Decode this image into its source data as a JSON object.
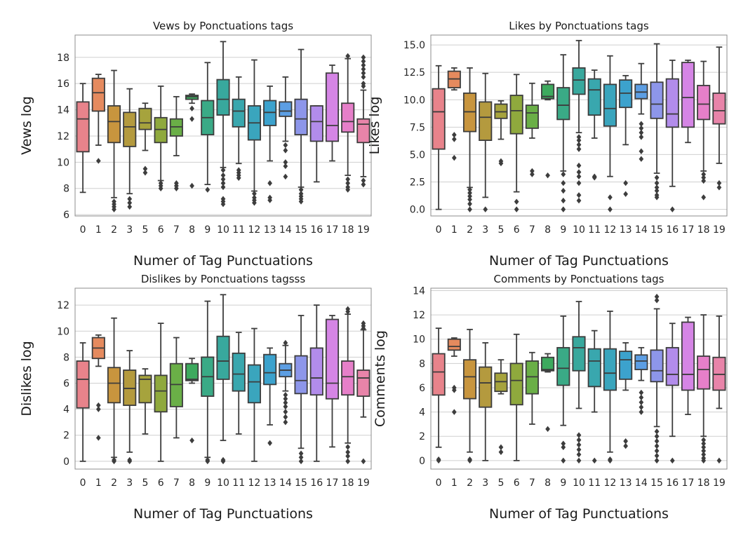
{
  "palette": [
    "#e8838b",
    "#e58a5e",
    "#c8953e",
    "#b49a3e",
    "#a6a33d",
    "#8fa93d",
    "#6aaf47",
    "#3daa5e",
    "#3aaa86",
    "#38a89d",
    "#39a7ae",
    "#3aa5bd",
    "#3ca2cd",
    "#5c9ee3",
    "#8d96ea",
    "#b28ceb",
    "#d585e5",
    "#e67fc9",
    "#e884a9",
    "#e6879a"
  ],
  "box_line": "#3d3d3d",
  "chart_data": [
    {
      "type": "box",
      "title": "Vews by Ponctuations tags",
      "xlabel": "Numer of Tag Punctuations",
      "ylabel": "Vews log",
      "categories": [
        "0",
        "1",
        "2",
        "3",
        "5",
        "6",
        "7",
        "8",
        "9",
        "10",
        "11",
        "12",
        "13",
        "14",
        "15",
        "16",
        "17",
        "18",
        "19"
      ],
      "ylim": [
        5.9,
        19.7
      ],
      "yticks": [
        6,
        8,
        10,
        12,
        14,
        16,
        18
      ],
      "grid": "horizontal",
      "boxes": [
        {
          "q1": 10.8,
          "med": 13.3,
          "q3": 14.6,
          "lo": 7.7,
          "hi": 16.0,
          "out": []
        },
        {
          "q1": 13.9,
          "med": 15.3,
          "q3": 16.4,
          "lo": 11.3,
          "hi": 16.7,
          "out": [
            10.1
          ]
        },
        {
          "q1": 11.5,
          "med": 13.1,
          "q3": 14.3,
          "lo": 7.3,
          "hi": 17.0,
          "out": [
            7.0,
            6.8,
            6.6,
            6.4
          ]
        },
        {
          "q1": 11.2,
          "med": 12.7,
          "q3": 13.8,
          "lo": 7.6,
          "hi": 15.6,
          "out": [
            7.2,
            6.9,
            6.6
          ]
        },
        {
          "q1": 12.5,
          "med": 13.0,
          "q3": 14.1,
          "lo": 10.9,
          "hi": 14.5,
          "out": [
            9.5,
            9.2
          ]
        },
        {
          "q1": 11.5,
          "med": 12.5,
          "q3": 13.4,
          "lo": 8.6,
          "hi": 15.8,
          "out": [
            8.4,
            8.2,
            8.0
          ]
        },
        {
          "q1": 12.0,
          "med": 12.7,
          "q3": 13.3,
          "lo": 10.5,
          "hi": 15.0,
          "out": [
            8.4,
            8.2,
            8.0
          ]
        },
        {
          "q1": 14.8,
          "med": 15.0,
          "q3": 15.1,
          "lo": 14.5,
          "hi": 15.2,
          "out": [
            14.1,
            13.3,
            8.2
          ]
        },
        {
          "q1": 12.1,
          "med": 13.4,
          "q3": 14.7,
          "lo": 8.3,
          "hi": 17.6,
          "out": [
            7.9
          ]
        },
        {
          "q1": 13.6,
          "med": 14.8,
          "q3": 16.3,
          "lo": 9.6,
          "hi": 19.2,
          "out": [
            9.4,
            9.0,
            8.7,
            8.4,
            8.1,
            7.2,
            7.0,
            6.8
          ]
        },
        {
          "q1": 12.7,
          "med": 13.9,
          "q3": 14.8,
          "lo": 9.9,
          "hi": 16.5,
          "out": [
            9.4,
            9.2,
            9.0,
            8.8
          ]
        },
        {
          "q1": 11.7,
          "med": 13.0,
          "q3": 14.3,
          "lo": 7.8,
          "hi": 17.8,
          "out": [
            7.6,
            7.3,
            7.1,
            6.9
          ]
        },
        {
          "q1": 12.8,
          "med": 13.8,
          "q3": 14.7,
          "lo": 10.1,
          "hi": 15.8,
          "out": [
            8.4,
            7.3,
            7.1
          ]
        },
        {
          "q1": 13.5,
          "med": 13.9,
          "q3": 14.6,
          "lo": 11.6,
          "hi": 16.5,
          "out": [
            11.3,
            10.9,
            10.0,
            9.7,
            8.9
          ]
        },
        {
          "q1": 12.1,
          "med": 13.3,
          "q3": 14.8,
          "lo": 8.1,
          "hi": 18.6,
          "out": [
            7.9,
            7.6,
            7.4,
            7.2,
            7.0
          ]
        },
        {
          "q1": 11.6,
          "med": 13.1,
          "q3": 14.3,
          "lo": 8.5,
          "hi": 14.3,
          "out": []
        },
        {
          "q1": 11.6,
          "med": 12.8,
          "q3": 16.8,
          "lo": 10.1,
          "hi": 17.4,
          "out": []
        },
        {
          "q1": 12.3,
          "med": 13.1,
          "q3": 14.5,
          "lo": 9.0,
          "hi": 17.9,
          "out": [
            18.1,
            8.7,
            8.4,
            8.1,
            7.9
          ]
        },
        {
          "q1": 11.5,
          "med": 12.9,
          "q3": 13.3,
          "lo": 8.9,
          "hi": 15.5,
          "out": [
            18.0,
            17.7,
            17.4,
            17.1,
            16.8,
            16.5,
            16.0,
            15.8,
            8.6,
            8.3
          ]
        }
      ]
    },
    {
      "type": "box",
      "title": "Likes by Ponctuations tags",
      "xlabel": "Numer of Tag Punctuations",
      "ylabel": "Likes log",
      "categories": [
        "0",
        "1",
        "2",
        "3",
        "5",
        "6",
        "7",
        "8",
        "9",
        "10",
        "11",
        "12",
        "13",
        "14",
        "15",
        "16",
        "17",
        "18",
        "19"
      ],
      "ylim": [
        -0.6,
        15.9
      ],
      "yticks": [
        0.0,
        2.5,
        5.0,
        7.5,
        10.0,
        12.5,
        15.0
      ],
      "grid": "horizontal",
      "boxes": [
        {
          "q1": 5.5,
          "med": 8.9,
          "q3": 11.0,
          "lo": 0.0,
          "hi": 13.1,
          "out": []
        },
        {
          "q1": 11.1,
          "med": 11.9,
          "q3": 12.6,
          "lo": 10.9,
          "hi": 12.9,
          "out": [
            6.8,
            6.4,
            4.7
          ]
        },
        {
          "q1": 7.1,
          "med": 8.9,
          "q3": 10.6,
          "lo": 2.0,
          "hi": 12.9,
          "out": [
            1.8,
            1.5,
            1.2,
            0.9,
            0.5,
            0.0
          ]
        },
        {
          "q1": 6.3,
          "med": 8.4,
          "q3": 9.8,
          "lo": 1.1,
          "hi": 12.4,
          "out": [
            0.0
          ]
        },
        {
          "q1": 8.3,
          "med": 8.9,
          "q3": 9.6,
          "lo": 6.4,
          "hi": 9.9,
          "out": [
            4.4,
            4.2
          ]
        },
        {
          "q1": 6.9,
          "med": 9.0,
          "q3": 10.4,
          "lo": 1.6,
          "hi": 12.3,
          "out": [
            0.7,
            0.0
          ]
        },
        {
          "q1": 7.4,
          "med": 8.8,
          "q3": 9.5,
          "lo": 6.5,
          "hi": 11.5,
          "out": [
            3.5,
            3.2
          ]
        },
        {
          "q1": 10.1,
          "med": 10.3,
          "q3": 11.4,
          "lo": 10.0,
          "hi": 11.7,
          "out": [
            3.1
          ]
        },
        {
          "q1": 8.2,
          "med": 9.5,
          "q3": 11.1,
          "lo": 3.5,
          "hi": 14.1,
          "out": [
            3.2,
            2.4,
            1.7,
            0.8,
            0.0
          ]
        },
        {
          "q1": 10.5,
          "med": 11.8,
          "q3": 12.9,
          "lo": 7.0,
          "hi": 15.4,
          "out": [
            6.6,
            6.3,
            5.9,
            5.5,
            4.0,
            3.4,
            3.0,
            2.4,
            1.3,
            0.8
          ]
        },
        {
          "q1": 8.6,
          "med": 10.9,
          "q3": 11.9,
          "lo": 6.5,
          "hi": 12.7,
          "out": [
            3.0,
            2.9
          ]
        },
        {
          "q1": 7.6,
          "med": 9.2,
          "q3": 11.4,
          "lo": 3.0,
          "hi": 14.0,
          "out": [
            1.1,
            0.0
          ]
        },
        {
          "q1": 9.3,
          "med": 10.6,
          "q3": 11.8,
          "lo": 5.9,
          "hi": 12.2,
          "out": [
            2.4,
            1.4
          ]
        },
        {
          "q1": 10.1,
          "med": 10.7,
          "q3": 11.4,
          "lo": 8.7,
          "hi": 13.3,
          "out": [
            7.8,
            7.4,
            7.0,
            6.6,
            5.3,
            4.6
          ]
        },
        {
          "q1": 8.3,
          "med": 9.6,
          "q3": 11.6,
          "lo": 3.3,
          "hi": 15.1,
          "out": [
            2.9,
            2.4,
            2.0,
            1.7,
            1.3,
            1.1
          ]
        },
        {
          "q1": 7.5,
          "med": 8.7,
          "q3": 11.9,
          "lo": 2.1,
          "hi": 13.6,
          "out": [
            0.0
          ]
        },
        {
          "q1": 7.5,
          "med": 10.2,
          "q3": 13.4,
          "lo": 6.1,
          "hi": 13.6,
          "out": []
        },
        {
          "q1": 8.2,
          "med": 9.6,
          "q3": 11.3,
          "lo": 3.5,
          "hi": 13.5,
          "out": [
            3.2,
            2.9,
            2.6,
            1.1
          ]
        },
        {
          "q1": 7.8,
          "med": 9.0,
          "q3": 10.6,
          "lo": 4.2,
          "hi": 14.8,
          "out": [
            2.4,
            2.0
          ]
        }
      ]
    },
    {
      "type": "box",
      "title": "Dislikes by Ponctuations tagsss",
      "xlabel": "Numer of Tag Punctuations",
      "ylabel": "Dislikes log",
      "categories": [
        "0",
        "1",
        "2",
        "3",
        "5",
        "6",
        "7",
        "8",
        "9",
        "10",
        "11",
        "12",
        "13",
        "14",
        "15",
        "16",
        "17",
        "18",
        "19"
      ],
      "ylim": [
        -0.6,
        13.3
      ],
      "yticks": [
        0,
        2,
        4,
        6,
        8,
        10,
        12
      ],
      "grid": "horizontal",
      "boxes": [
        {
          "q1": 4.1,
          "med": 6.3,
          "q3": 7.7,
          "lo": 0.0,
          "hi": 9.1,
          "out": []
        },
        {
          "q1": 7.9,
          "med": 8.7,
          "q3": 9.5,
          "lo": 7.3,
          "hi": 9.7,
          "out": [
            4.3,
            4.0,
            1.8
          ]
        },
        {
          "q1": 4.5,
          "med": 6.0,
          "q3": 7.2,
          "lo": 0.3,
          "hi": 11.0,
          "out": [
            0.1,
            0.0
          ]
        },
        {
          "q1": 4.3,
          "med": 5.6,
          "q3": 7.0,
          "lo": 0.7,
          "hi": 8.5,
          "out": [
            0.1,
            0.0
          ]
        },
        {
          "q1": 4.5,
          "med": 6.3,
          "q3": 6.6,
          "lo": 2.1,
          "hi": 7.1,
          "out": []
        },
        {
          "q1": 3.8,
          "med": 5.4,
          "q3": 6.6,
          "lo": 0.0,
          "hi": 10.6,
          "out": []
        },
        {
          "q1": 4.2,
          "med": 5.9,
          "q3": 7.5,
          "lo": 1.8,
          "hi": 9.5,
          "out": []
        },
        {
          "q1": 6.2,
          "med": 6.3,
          "q3": 7.5,
          "lo": 6.0,
          "hi": 7.9,
          "out": [
            1.6
          ]
        },
        {
          "q1": 5.0,
          "med": 6.5,
          "q3": 8.0,
          "lo": 0.3,
          "hi": 12.3,
          "out": [
            0.1,
            0.0
          ]
        },
        {
          "q1": 6.3,
          "med": 7.7,
          "q3": 9.6,
          "lo": 1.6,
          "hi": 12.8,
          "out": [
            0.1,
            0.0
          ]
        },
        {
          "q1": 5.4,
          "med": 6.7,
          "q3": 8.3,
          "lo": 2.1,
          "hi": 9.9,
          "out": []
        },
        {
          "q1": 4.5,
          "med": 6.1,
          "q3": 7.4,
          "lo": 0.0,
          "hi": 10.2,
          "out": []
        },
        {
          "q1": 5.9,
          "med": 6.8,
          "q3": 8.2,
          "lo": 2.8,
          "hi": 8.7,
          "out": [
            1.4
          ]
        },
        {
          "q1": 6.5,
          "med": 7.0,
          "q3": 7.5,
          "lo": 5.4,
          "hi": 8.9,
          "out": [
            9.1,
            5.1,
            4.8,
            4.5,
            4.2,
            3.8,
            3.4,
            3.0
          ]
        },
        {
          "q1": 5.2,
          "med": 6.2,
          "q3": 8.1,
          "lo": 1.0,
          "hi": 11.2,
          "out": [
            0.6,
            0.3,
            0.0
          ]
        },
        {
          "q1": 5.1,
          "med": 6.4,
          "q3": 8.7,
          "lo": 0.0,
          "hi": 12.0,
          "out": []
        },
        {
          "q1": 4.8,
          "med": 6.0,
          "q3": 10.9,
          "lo": 1.1,
          "hi": 11.2,
          "out": []
        },
        {
          "q1": 5.1,
          "med": 6.5,
          "q3": 7.7,
          "lo": 1.4,
          "hi": 11.3,
          "out": [
            11.7,
            11.5,
            1.1,
            0.7,
            0.4,
            0.0
          ]
        },
        {
          "q1": 5.0,
          "med": 6.4,
          "q3": 7.0,
          "lo": 3.4,
          "hi": 10.1,
          "out": [
            10.6,
            10.4,
            10.2,
            0.0
          ]
        }
      ]
    },
    {
      "type": "box",
      "title": "Comments by Ponctuations tags",
      "xlabel": "Numer of Tag Punctuations",
      "ylabel": "Comments log",
      "categories": [
        "0",
        "1",
        "2",
        "3",
        "5",
        "6",
        "7",
        "8",
        "9",
        "10",
        "11",
        "12",
        "13",
        "14",
        "15",
        "16",
        "17",
        "18",
        "19"
      ],
      "ylim": [
        -0.7,
        14.2
      ],
      "yticks": [
        0,
        2,
        4,
        6,
        8,
        10,
        12,
        14
      ],
      "grid": "horizontal",
      "boxes": [
        {
          "q1": 5.4,
          "med": 7.3,
          "q3": 8.8,
          "lo": 1.1,
          "hi": 10.9,
          "out": [
            0.1,
            0.0
          ]
        },
        {
          "q1": 9.1,
          "med": 9.4,
          "q3": 10.0,
          "lo": 8.6,
          "hi": 10.1,
          "out": [
            6.0,
            5.8,
            4.0
          ]
        },
        {
          "q1": 5.1,
          "med": 6.9,
          "q3": 8.3,
          "lo": 0.7,
          "hi": 10.8,
          "out": [
            0.1,
            0.0
          ]
        },
        {
          "q1": 4.4,
          "med": 6.4,
          "q3": 7.7,
          "lo": 0.0,
          "hi": 9.7,
          "out": []
        },
        {
          "q1": 5.7,
          "med": 6.5,
          "q3": 7.2,
          "lo": 5.5,
          "hi": 8.3,
          "out": [
            1.1,
            0.7
          ]
        },
        {
          "q1": 4.6,
          "med": 6.6,
          "q3": 8.0,
          "lo": 0.0,
          "hi": 10.4,
          "out": []
        },
        {
          "q1": 5.5,
          "med": 6.9,
          "q3": 8.2,
          "lo": 3.0,
          "hi": 8.9,
          "out": []
        },
        {
          "q1": 7.4,
          "med": 7.5,
          "q3": 8.5,
          "lo": 7.3,
          "hi": 8.8,
          "out": [
            2.6
          ]
        },
        {
          "q1": 6.2,
          "med": 7.6,
          "q3": 9.3,
          "lo": 2.9,
          "hi": 11.9,
          "out": [
            1.4,
            1.1,
            0.0
          ]
        },
        {
          "q1": 7.4,
          "med": 9.3,
          "q3": 10.2,
          "lo": 4.3,
          "hi": 13.1,
          "out": [
            2.1,
            1.7,
            1.3,
            0.9,
            0.5,
            0.0
          ]
        },
        {
          "q1": 6.1,
          "med": 8.2,
          "q3": 9.2,
          "lo": 4.0,
          "hi": 10.7,
          "out": [
            0.0
          ]
        },
        {
          "q1": 5.8,
          "med": 7.2,
          "q3": 9.2,
          "lo": 0.7,
          "hi": 12.3,
          "out": [
            0.1,
            0.0
          ]
        },
        {
          "q1": 6.7,
          "med": 8.3,
          "q3": 9.0,
          "lo": 5.8,
          "hi": 9.7,
          "out": [
            1.6,
            1.2
          ]
        },
        {
          "q1": 7.5,
          "med": 8.2,
          "q3": 8.7,
          "lo": 6.6,
          "hi": 9.3,
          "out": [
            5.6,
            5.2,
            4.8,
            4.4,
            4.0
          ]
        },
        {
          "q1": 6.5,
          "med": 7.4,
          "q3": 9.1,
          "lo": 2.8,
          "hi": 12.5,
          "out": [
            13.5,
            13.2,
            2.4,
            2.0,
            1.6,
            1.2,
            0.8,
            0.4,
            0.0
          ]
        },
        {
          "q1": 6.2,
          "med": 7.1,
          "q3": 9.3,
          "lo": 2.0,
          "hi": 11.3,
          "out": [
            0.0
          ]
        },
        {
          "q1": 5.8,
          "med": 7.1,
          "q3": 11.4,
          "lo": 3.8,
          "hi": 11.8,
          "out": []
        },
        {
          "q1": 5.9,
          "med": 7.5,
          "q3": 8.6,
          "lo": 2.0,
          "hi": 12.0,
          "out": [
            1.7,
            1.4,
            1.1,
            0.8,
            0.5,
            0.2,
            0.0
          ]
        },
        {
          "q1": 5.8,
          "med": 7.1,
          "q3": 8.5,
          "lo": 4.3,
          "hi": 11.9,
          "out": [
            0.0
          ]
        }
      ]
    }
  ]
}
